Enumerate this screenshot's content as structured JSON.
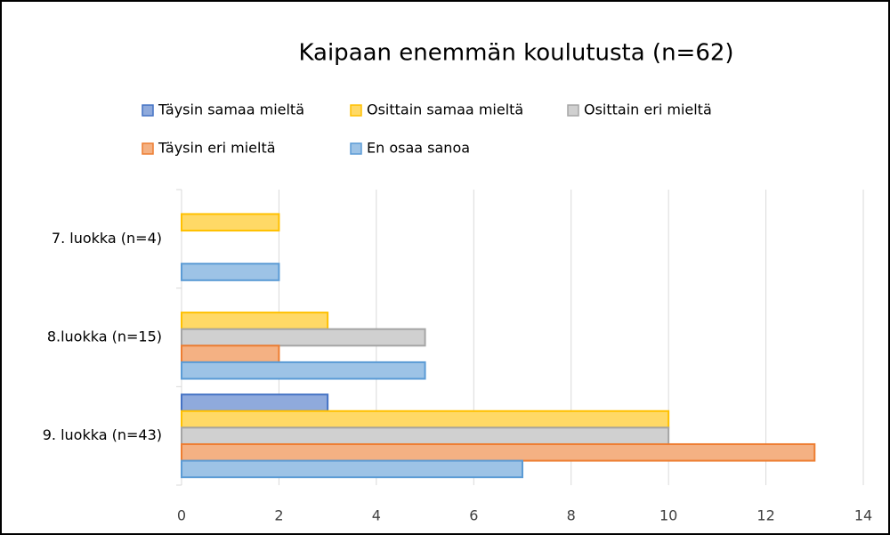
{
  "chart_data": {
    "type": "barh",
    "title": "Kaipaan enemmän koulutusta (n=62)",
    "categories": [
      "7. luokka (n=4)",
      "8.luokka (n=15)",
      "9. luokka (n=43)"
    ],
    "series": [
      {
        "name": "Täysin samaa mieltä",
        "color": "#8faadc",
        "edgecolor": "#4472c4",
        "values": [
          0,
          0,
          3
        ]
      },
      {
        "name": "Osittain samaa mieltä",
        "color": "#ffd966",
        "edgecolor": "#ffc000",
        "values": [
          2,
          3,
          10
        ]
      },
      {
        "name": "Osittain eri mieltä",
        "color": "#d0d0d0",
        "edgecolor": "#a5a5a5",
        "values": [
          0,
          5,
          10
        ]
      },
      {
        "name": "Täysin eri mieltä",
        "color": "#f4b183",
        "edgecolor": "#ed7d31",
        "values": [
          0,
          2,
          13
        ]
      },
      {
        "name": "En osaa sanoa",
        "color": "#9dc3e6",
        "edgecolor": "#5b9bd5",
        "values": [
          2,
          5,
          7
        ]
      }
    ],
    "xlim": [
      0,
      14
    ],
    "xticks": [
      0,
      2,
      4,
      6,
      8,
      10,
      12,
      14
    ],
    "grid": true,
    "legend": "top"
  }
}
